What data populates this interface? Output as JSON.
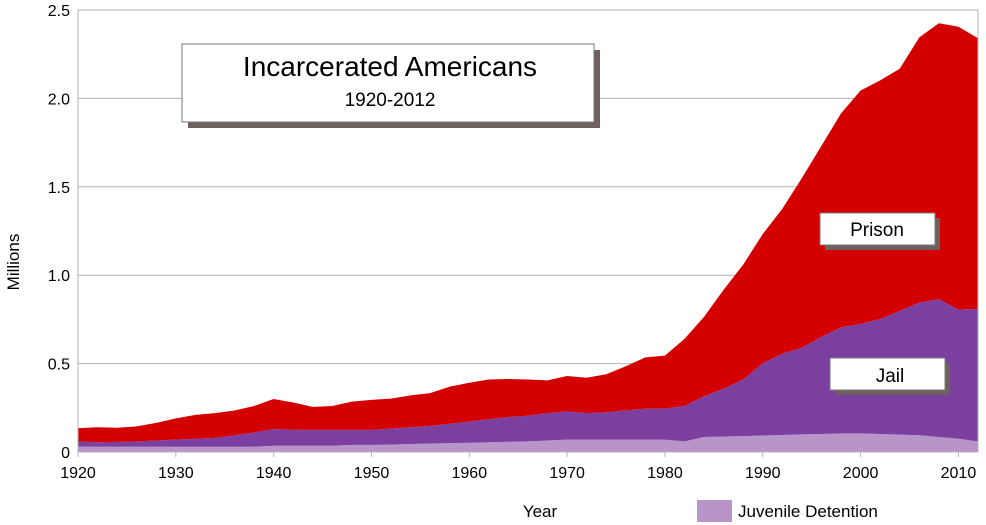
{
  "chart_data": {
    "type": "area",
    "stacked": true,
    "title": "Incarcerated Americans",
    "subtitle": "1920-2012",
    "xlabel": "Year",
    "ylabel": "Millions",
    "xlim": [
      1920,
      2012
    ],
    "ylim": [
      0,
      2.5
    ],
    "x_ticks": [
      "1920",
      "1930",
      "1940",
      "1950",
      "1960",
      "1970",
      "1980",
      "1990",
      "2000",
      "2010"
    ],
    "y_ticks": [
      "0",
      "0.5",
      "1.0",
      "1.5",
      "2.0",
      "2.5"
    ],
    "grid": true,
    "x": [
      1920,
      1922,
      1924,
      1926,
      1928,
      1930,
      1932,
      1934,
      1936,
      1938,
      1940,
      1942,
      1944,
      1946,
      1948,
      1950,
      1952,
      1954,
      1956,
      1958,
      1960,
      1962,
      1964,
      1966,
      1968,
      1970,
      1972,
      1974,
      1976,
      1978,
      1980,
      1982,
      1984,
      1986,
      1988,
      1990,
      1992,
      1994,
      1996,
      1998,
      2000,
      2002,
      2004,
      2006,
      2008,
      2010,
      2012
    ],
    "series": [
      {
        "name": "Juvenile Detention",
        "color": "#b895c9",
        "values": [
          0.03,
          0.03,
          0.03,
          0.03,
          0.03,
          0.03,
          0.03,
          0.03,
          0.03,
          0.03,
          0.035,
          0.035,
          0.035,
          0.035,
          0.04,
          0.04,
          0.042,
          0.045,
          0.048,
          0.05,
          0.052,
          0.055,
          0.058,
          0.06,
          0.065,
          0.07,
          0.07,
          0.07,
          0.07,
          0.07,
          0.07,
          0.06,
          0.085,
          0.088,
          0.09,
          0.093,
          0.096,
          0.1,
          0.102,
          0.105,
          0.105,
          0.102,
          0.098,
          0.095,
          0.085,
          0.075,
          0.06
        ]
      },
      {
        "name": "Jail",
        "color": "#7b3fa0",
        "values": [
          0.03,
          0.025,
          0.027,
          0.03,
          0.035,
          0.04,
          0.045,
          0.05,
          0.065,
          0.08,
          0.095,
          0.09,
          0.09,
          0.09,
          0.085,
          0.085,
          0.09,
          0.095,
          0.1,
          0.11,
          0.12,
          0.13,
          0.14,
          0.145,
          0.155,
          0.16,
          0.15,
          0.155,
          0.165,
          0.175,
          0.175,
          0.2,
          0.23,
          0.27,
          0.32,
          0.41,
          0.46,
          0.49,
          0.55,
          0.6,
          0.62,
          0.65,
          0.7,
          0.75,
          0.78,
          0.73,
          0.75
        ]
      },
      {
        "name": "Prison",
        "color": "#d40000",
        "values": [
          0.075,
          0.085,
          0.08,
          0.085,
          0.1,
          0.12,
          0.135,
          0.14,
          0.14,
          0.15,
          0.17,
          0.155,
          0.13,
          0.135,
          0.16,
          0.17,
          0.17,
          0.18,
          0.185,
          0.21,
          0.22,
          0.225,
          0.215,
          0.205,
          0.185,
          0.2,
          0.2,
          0.215,
          0.25,
          0.29,
          0.3,
          0.38,
          0.45,
          0.56,
          0.65,
          0.73,
          0.82,
          0.96,
          1.08,
          1.21,
          1.32,
          1.35,
          1.37,
          1.5,
          1.56,
          1.6,
          1.53
        ]
      }
    ],
    "annotations": [
      "Prison",
      "Jail"
    ],
    "legend": {
      "placement": "bottom-right",
      "entries": [
        "Juvenile Detention"
      ]
    }
  }
}
